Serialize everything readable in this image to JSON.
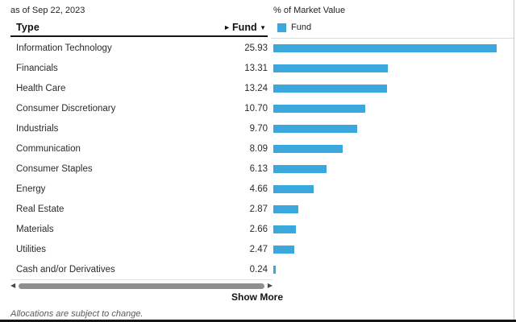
{
  "page": {
    "as_of": "as of Sep 22, 2023",
    "market_value_label": "% of Market Value"
  },
  "table": {
    "columns": {
      "type": "Type",
      "fund": "Fund"
    },
    "sort_indicator": "▼",
    "scroll_arrow": "►"
  },
  "legend": {
    "label": "Fund"
  },
  "chart_data": {
    "type": "bar",
    "orientation": "horizontal",
    "title": "% of Market Value",
    "series_name": "Fund",
    "categories": [
      "Information Technology",
      "Financials",
      "Health Care",
      "Consumer Discretionary",
      "Industrials",
      "Communication",
      "Consumer Staples",
      "Energy",
      "Real Estate",
      "Materials",
      "Utilities",
      "Cash and/or Derivatives"
    ],
    "values": [
      25.93,
      13.31,
      13.24,
      10.7,
      9.7,
      8.09,
      6.13,
      4.66,
      2.87,
      2.66,
      2.47,
      0.24
    ],
    "xlim": [
      0,
      25.93
    ],
    "bar_color": "#3aa8dc",
    "grid": false,
    "legend_position": "top"
  },
  "scrollbar": {
    "left_arrow": "◀",
    "right_arrow": "▶"
  },
  "actions": {
    "show_more": "Show More"
  },
  "footer": {
    "disclaimer": "Allocations are subject to change."
  }
}
